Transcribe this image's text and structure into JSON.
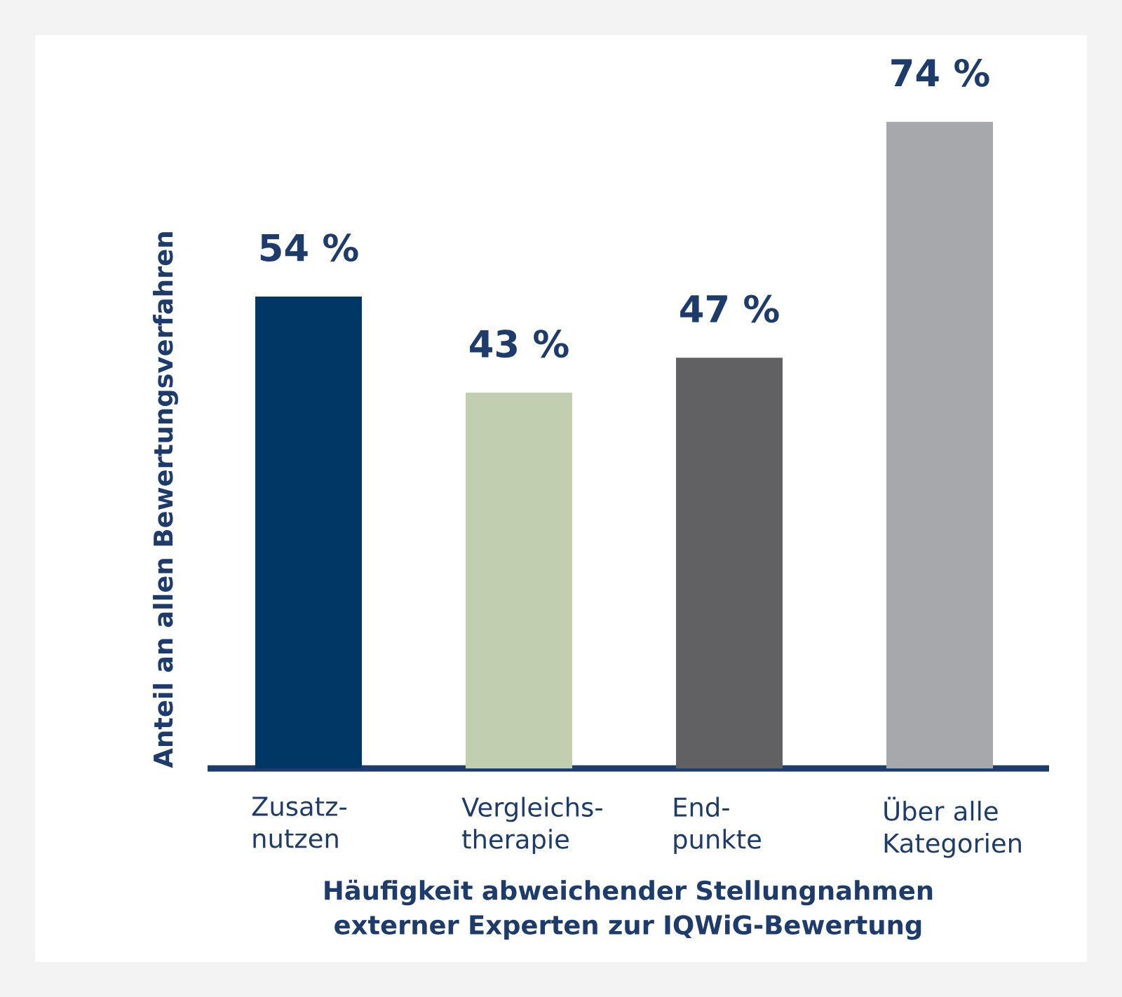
{
  "chart_data": {
    "type": "bar",
    "categories": [
      "Zusatz- nutzen",
      "Vergleichs- therapie",
      "End- punkte",
      "Über alle Kategorien"
    ],
    "values": [
      54,
      43,
      47,
      74
    ],
    "colors": [
      "#003764",
      "#c1cfb0",
      "#616164",
      "#a7a8ab"
    ],
    "value_labels": [
      "54 %",
      "43 %",
      "47 %",
      "74 %"
    ],
    "xlabel": "Häufigkeit abweichender Stellungnahmen externer Experten zur IQWiG-Bewertung",
    "ylabel": "Anteil an allen Bewertungsverfahren"
  }
}
